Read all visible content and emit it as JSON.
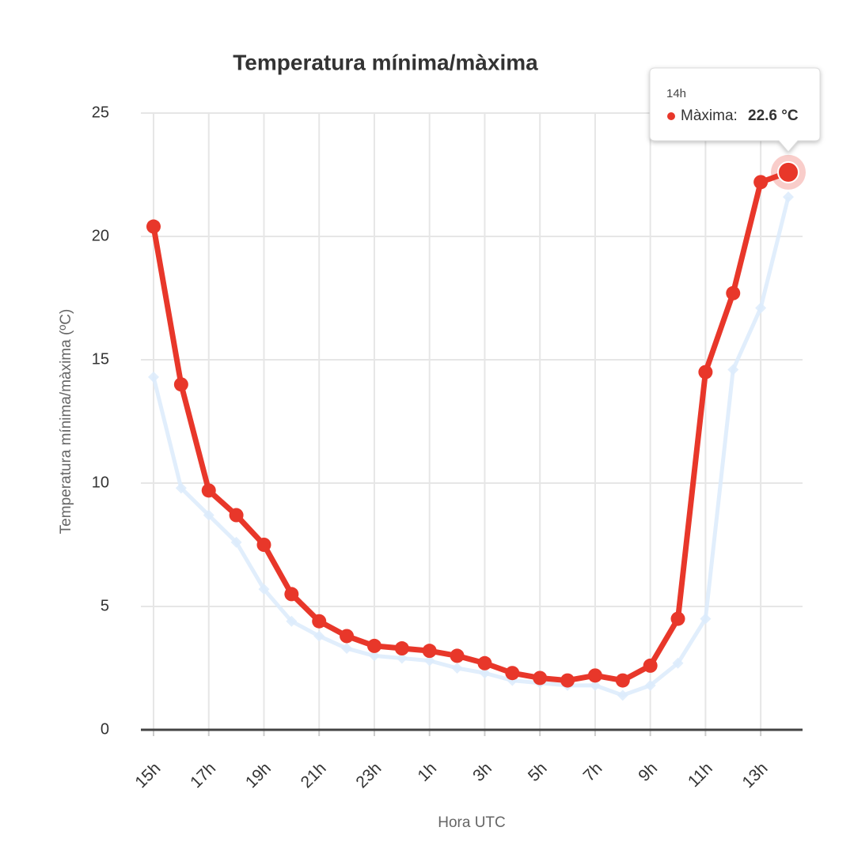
{
  "chart_data": {
    "type": "line",
    "title": "Temperatura mínima/màxima",
    "y_label": "Temperatura mínima/màxima (ºC)",
    "x_label": "Hora UTC",
    "categories": [
      "15h",
      null,
      "17h",
      null,
      "19h",
      null,
      "21h",
      null,
      "23h",
      null,
      "1h",
      null,
      "3h",
      null,
      "5h",
      null,
      "7h",
      null,
      "9h",
      null,
      "11h",
      null,
      "13h",
      null
    ],
    "series": [
      {
        "name": "Màxima",
        "color": "#e8372a",
        "values": [
          20.4,
          14.0,
          9.7,
          8.7,
          7.5,
          5.5,
          4.4,
          3.8,
          3.4,
          3.3,
          3.2,
          3.0,
          2.7,
          2.3,
          2.1,
          2.0,
          2.2,
          2.0,
          2.6,
          4.5,
          14.5,
          17.7,
          22.2,
          22.6
        ]
      },
      {
        "color": "#dcebfb",
        "values": [
          14.3,
          9.8,
          8.7,
          7.6,
          5.7,
          4.4,
          3.8,
          3.3,
          3.0,
          2.9,
          2.8,
          2.5,
          2.3,
          2.0,
          1.9,
          1.8,
          1.8,
          1.4,
          1.8,
          2.7,
          4.5,
          14.6,
          17.1,
          21.6
        ]
      }
    ],
    "ylim": [
      0,
      25
    ],
    "yticks": [
      0,
      5,
      10,
      15,
      20,
      25
    ],
    "grid": true,
    "tooltip": {
      "x": "14h",
      "label": "Màxima:",
      "value_label": "22.6 °C"
    }
  }
}
